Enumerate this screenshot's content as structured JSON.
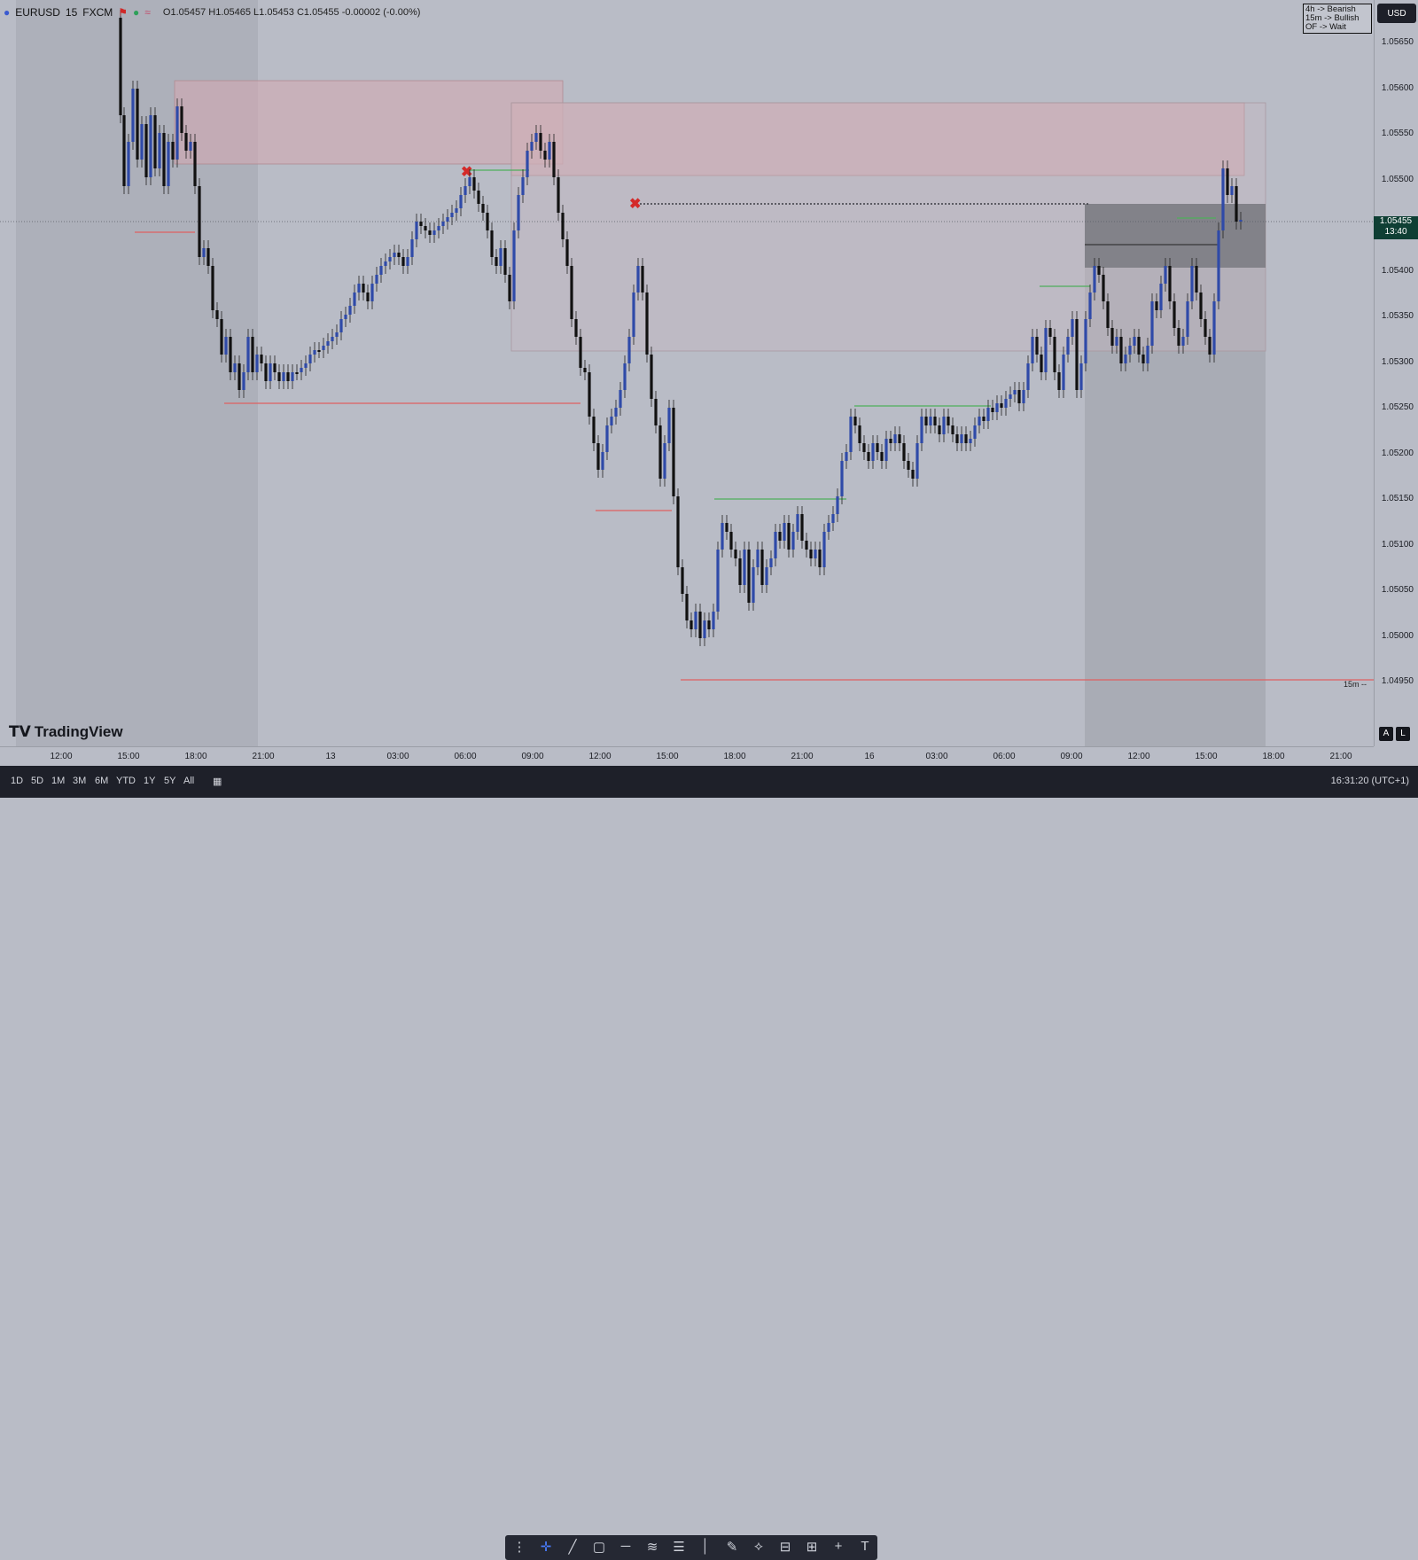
{
  "symbol": {
    "name": "EURUSD",
    "interval": "15",
    "broker": "FXCM"
  },
  "ohlc_text": "O1.05457 H1.05465 L1.05453 C1.05455 -0.00002 (-0.00%)",
  "bias_box": {
    "lines": [
      "4h -> Bearish",
      "15m -> Bullish",
      "OF -> Wait"
    ]
  },
  "currency": "USD",
  "current_price": {
    "price": "1.05455",
    "countdown": "13:40"
  },
  "price_axis": [
    "1.05650",
    "1.05600",
    "1.05550",
    "1.05500",
    "1.05450",
    "1.05400",
    "1.05350",
    "1.05300",
    "1.05250",
    "1.05200",
    "1.05150",
    "1.05100",
    "1.05050",
    "1.05000",
    "1.04950"
  ],
  "time_axis": [
    "12:00",
    "15:00",
    "18:00",
    "21:00",
    "13",
    "03:00",
    "06:00",
    "09:00",
    "12:00",
    "15:00",
    "18:00",
    "21:00",
    "16",
    "03:00",
    "06:00",
    "09:00",
    "12:00",
    "15:00",
    "18:00",
    "21:00"
  ],
  "timeframe_buttons": [
    "1D",
    "5D",
    "1M",
    "3M",
    "6M",
    "YTD",
    "1Y",
    "5Y",
    "All"
  ],
  "clock": "16:31:20 (UTC+1)",
  "brand": "TradingView",
  "label_15m": "15m --",
  "ab": [
    "A",
    "L"
  ],
  "icons": {
    "symbol_icon": "globe-icon",
    "flag": "red-flag-icon",
    "status_dot": "green-dot-icon",
    "wave": "wave-icon",
    "calendar": "calendar-icon",
    "tools": [
      "grip-icon",
      "crosshair-icon",
      "trend-line-icon",
      "rectangle-icon",
      "horizontal-line-icon",
      "channel-icon",
      "fib-icon",
      "vertical-line-icon",
      "pen-icon",
      "pattern-icon",
      "measure-icon",
      "position-icon",
      "cross-icon",
      "text-icon"
    ]
  },
  "colors": {
    "bull": "#2f4aa8",
    "bear": "#111111",
    "supply_zone": "#d5a8b0",
    "demand_line": "#e06060",
    "green_line": "#4fae5b",
    "dark_zone": "#5a5c63"
  }
}
